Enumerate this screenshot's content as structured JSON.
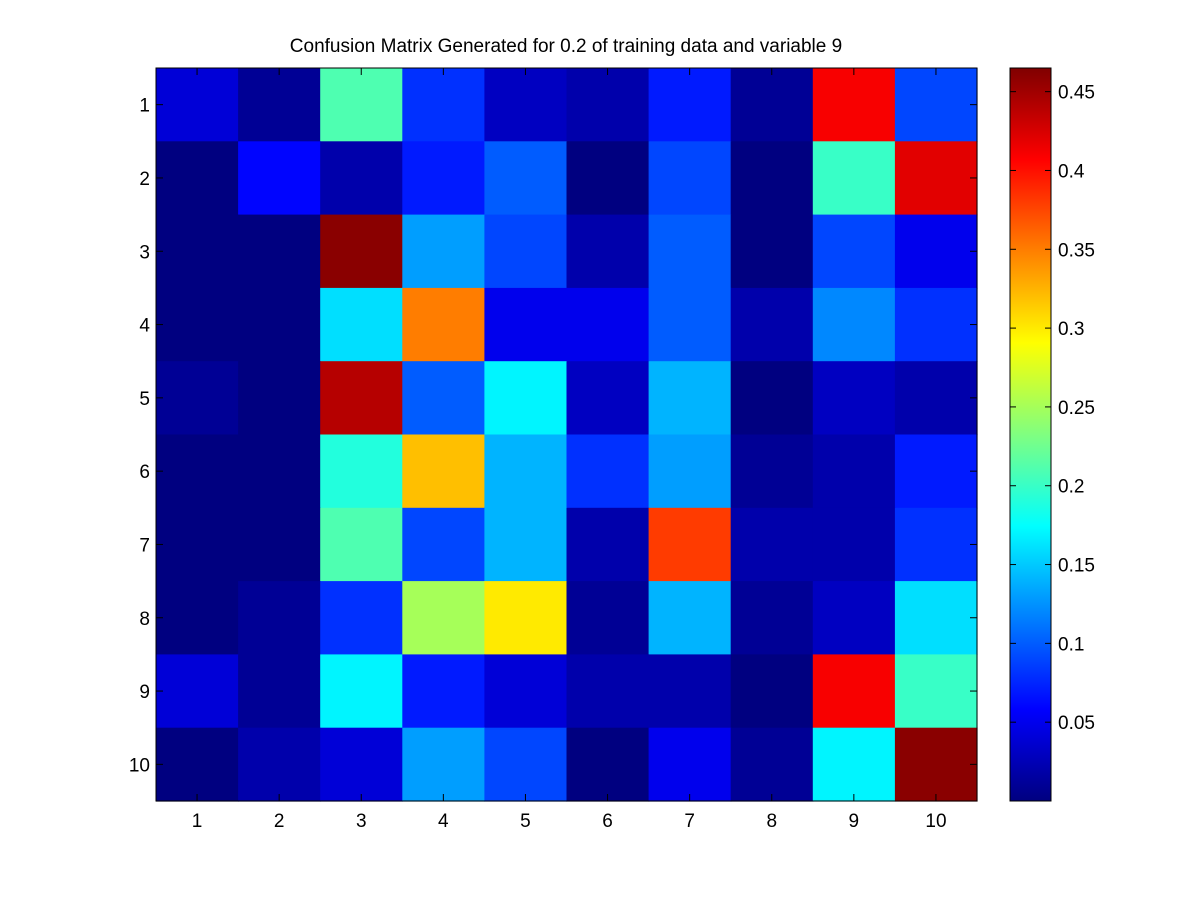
{
  "chart_data": {
    "type": "heatmap",
    "title": "Confusion Matrix Generated for 0.2 of training data and variable 9",
    "xlabel": "",
    "ylabel": "",
    "x_categories": [
      "1",
      "2",
      "3",
      "4",
      "5",
      "6",
      "7",
      "8",
      "9",
      "10"
    ],
    "y_categories": [
      "1",
      "2",
      "3",
      "4",
      "5",
      "6",
      "7",
      "8",
      "9",
      "10"
    ],
    "colormap": "jet",
    "clim": [
      0.0,
      0.465
    ],
    "colorbar_ticks": [
      0.05,
      0.1,
      0.15,
      0.2,
      0.25,
      0.3,
      0.35,
      0.4,
      0.45
    ],
    "colorbar_tick_labels": [
      "0.05",
      "0.1",
      "0.15",
      "0.2",
      "0.25",
      "0.3",
      "0.35",
      "0.4",
      "0.45"
    ],
    "grid": false,
    "colorbar_position": "right",
    "values": [
      [
        0.04,
        0.01,
        0.21,
        0.08,
        0.03,
        0.02,
        0.07,
        0.01,
        0.41,
        0.09
      ],
      [
        0.0,
        0.06,
        0.02,
        0.07,
        0.1,
        0.0,
        0.09,
        0.0,
        0.2,
        0.42
      ],
      [
        0.0,
        0.0,
        0.46,
        0.13,
        0.09,
        0.02,
        0.1,
        0.0,
        0.09,
        0.05
      ],
      [
        0.0,
        0.0,
        0.16,
        0.35,
        0.05,
        0.05,
        0.1,
        0.02,
        0.12,
        0.08
      ],
      [
        0.01,
        0.0,
        0.44,
        0.1,
        0.17,
        0.03,
        0.14,
        0.0,
        0.03,
        0.02
      ],
      [
        0.0,
        0.0,
        0.19,
        0.32,
        0.14,
        0.08,
        0.13,
        0.01,
        0.02,
        0.07
      ],
      [
        0.0,
        0.0,
        0.21,
        0.09,
        0.14,
        0.02,
        0.38,
        0.02,
        0.02,
        0.08
      ],
      [
        0.0,
        0.01,
        0.08,
        0.25,
        0.3,
        0.01,
        0.14,
        0.01,
        0.03,
        0.16
      ],
      [
        0.04,
        0.01,
        0.17,
        0.07,
        0.04,
        0.02,
        0.02,
        0.0,
        0.41,
        0.2
      ],
      [
        0.0,
        0.02,
        0.04,
        0.13,
        0.09,
        0.0,
        0.05,
        0.01,
        0.17,
        0.46
      ]
    ]
  }
}
